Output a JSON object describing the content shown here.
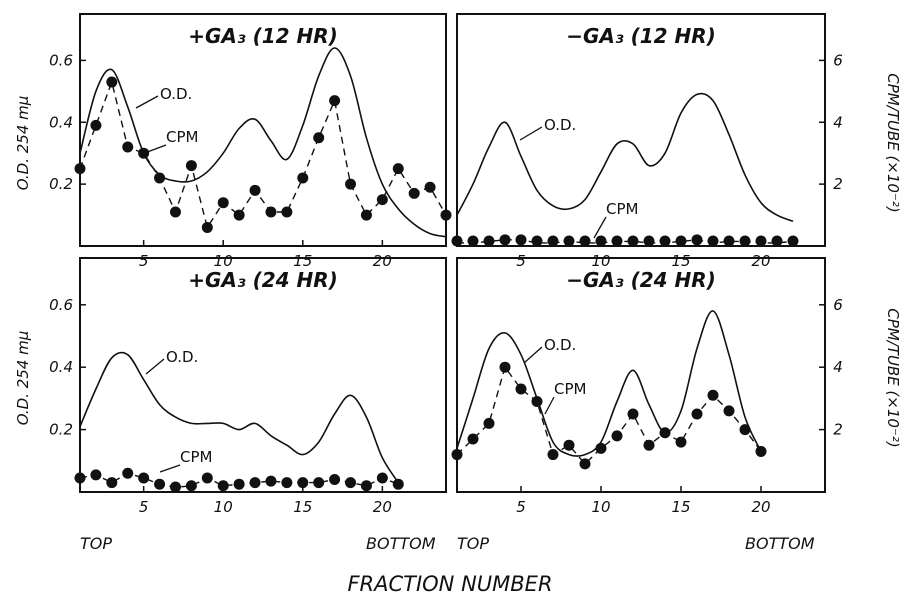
{
  "figure": {
    "xlabel": "FRACTION NUMBER",
    "ylabel_left": "O.D. 254 mμ",
    "ylabel_right": "CPM/TUBE (×10⁻²)",
    "top_label": "TOP",
    "bottom_label": "BOTTOM",
    "od_label": "O.D.",
    "cpm_label": "CPM"
  },
  "chart_data": [
    {
      "type": "line",
      "title": "+GA₃ (12 HR)",
      "xlim": [
        1,
        24
      ],
      "ylim_od": [
        0,
        0.75
      ],
      "ylim_cpm": [
        0,
        7.5
      ],
      "xticks": [
        5,
        10,
        15,
        20
      ],
      "yticks_od": [
        0.2,
        0.4,
        0.6
      ],
      "od": {
        "x": [
          1,
          2,
          3,
          4,
          5,
          6,
          7,
          8,
          9,
          10,
          11,
          12,
          13,
          14,
          15,
          16,
          17,
          18,
          19,
          20,
          21,
          22,
          23,
          24
        ],
        "y": [
          0.3,
          0.5,
          0.57,
          0.45,
          0.3,
          0.23,
          0.21,
          0.21,
          0.24,
          0.3,
          0.38,
          0.41,
          0.34,
          0.28,
          0.39,
          0.55,
          0.64,
          0.55,
          0.35,
          0.2,
          0.12,
          0.07,
          0.04,
          0.03
        ]
      },
      "cpm": {
        "x": [
          1,
          2,
          3,
          4,
          5,
          6,
          7,
          8,
          9,
          10,
          11,
          12,
          13,
          14,
          15,
          16,
          17,
          18,
          19,
          20,
          21,
          22,
          23,
          24
        ],
        "y": [
          2.5,
          3.9,
          5.3,
          3.2,
          3.0,
          2.2,
          1.1,
          2.6,
          0.6,
          1.4,
          1.0,
          1.8,
          1.1,
          1.1,
          2.2,
          3.5,
          4.7,
          2.0,
          1.0,
          1.5,
          2.5,
          1.7,
          1.9,
          1.0
        ]
      }
    },
    {
      "type": "line",
      "title": "−GA₃ (12 HR)",
      "xlim": [
        1,
        24
      ],
      "ylim_od": [
        0,
        0.75
      ],
      "ylim_cpm": [
        0,
        7.5
      ],
      "xticks": [
        5,
        10,
        15,
        20
      ],
      "yticks_cpm": [
        2,
        4,
        6
      ],
      "od": {
        "x": [
          1,
          2,
          3,
          4,
          5,
          6,
          7,
          8,
          9,
          10,
          11,
          12,
          13,
          14,
          15,
          16,
          17,
          18,
          19,
          20,
          21,
          22
        ],
        "y": [
          0.1,
          0.2,
          0.32,
          0.4,
          0.29,
          0.18,
          0.13,
          0.12,
          0.15,
          0.24,
          0.33,
          0.33,
          0.26,
          0.3,
          0.43,
          0.49,
          0.47,
          0.36,
          0.23,
          0.14,
          0.1,
          0.08
        ]
      },
      "cpm": {
        "x": [
          1,
          2,
          3,
          4,
          5,
          6,
          7,
          8,
          9,
          10,
          11,
          12,
          13,
          14,
          15,
          16,
          17,
          18,
          19,
          20,
          21,
          22
        ],
        "y": [
          0.1,
          0.1,
          0.15,
          0.2,
          0.2,
          0.1,
          0.1,
          0.15,
          0.1,
          0.1,
          0.15,
          0.15,
          0.1,
          0.1,
          0.15,
          0.2,
          0.1,
          0.15,
          0.15,
          0.1,
          0.1,
          0.15
        ]
      }
    },
    {
      "type": "line",
      "title": "+GA₃ (24 HR)",
      "xlim": [
        1,
        24
      ],
      "ylim_od": [
        0,
        0.75
      ],
      "ylim_cpm": [
        0,
        7.5
      ],
      "xticks": [
        5,
        10,
        15,
        20
      ],
      "yticks_od": [
        0.2,
        0.4,
        0.6
      ],
      "od": {
        "x": [
          1,
          2,
          3,
          4,
          5,
          6,
          7,
          8,
          9,
          10,
          11,
          12,
          13,
          14,
          15,
          16,
          17,
          18,
          19,
          20,
          21
        ],
        "y": [
          0.21,
          0.33,
          0.43,
          0.44,
          0.36,
          0.28,
          0.24,
          0.22,
          0.22,
          0.22,
          0.2,
          0.22,
          0.18,
          0.15,
          0.12,
          0.16,
          0.25,
          0.31,
          0.24,
          0.11,
          0.03
        ]
      },
      "cpm": {
        "x": [
          1,
          2,
          3,
          4,
          5,
          6,
          7,
          8,
          9,
          10,
          11,
          12,
          13,
          14,
          15,
          16,
          17,
          18,
          19,
          20,
          21
        ],
        "y": [
          0.45,
          0.55,
          0.3,
          0.6,
          0.45,
          0.25,
          0.15,
          0.2,
          0.45,
          0.2,
          0.25,
          0.3,
          0.35,
          0.3,
          0.3,
          0.3,
          0.4,
          0.3,
          0.2,
          0.45,
          0.25
        ]
      }
    },
    {
      "type": "line",
      "title": "−GA₃ (24 HR)",
      "xlim": [
        1,
        24
      ],
      "ylim_od": [
        0,
        0.75
      ],
      "ylim_cpm": [
        0,
        7.5
      ],
      "xticks": [
        5,
        10,
        15,
        20
      ],
      "yticks_cpm": [
        2,
        4,
        6
      ],
      "od": {
        "x": [
          1,
          2,
          3,
          4,
          5,
          6,
          7,
          8,
          9,
          10,
          11,
          12,
          13,
          14,
          15,
          16,
          17,
          18,
          19,
          20
        ],
        "y": [
          0.14,
          0.3,
          0.46,
          0.51,
          0.44,
          0.3,
          0.16,
          0.12,
          0.12,
          0.16,
          0.29,
          0.39,
          0.28,
          0.19,
          0.26,
          0.46,
          0.58,
          0.44,
          0.24,
          0.13
        ]
      },
      "cpm": {
        "x": [
          1,
          2,
          3,
          4,
          5,
          6,
          7,
          8,
          9,
          10,
          11,
          12,
          13,
          14,
          15,
          16,
          17,
          18,
          19,
          20
        ],
        "y": [
          1.2,
          1.7,
          2.2,
          4.0,
          3.3,
          2.9,
          1.2,
          1.5,
          0.9,
          1.4,
          1.8,
          2.5,
          1.5,
          1.9,
          1.6,
          2.5,
          3.1,
          2.6,
          2.0,
          1.3
        ]
      }
    }
  ]
}
